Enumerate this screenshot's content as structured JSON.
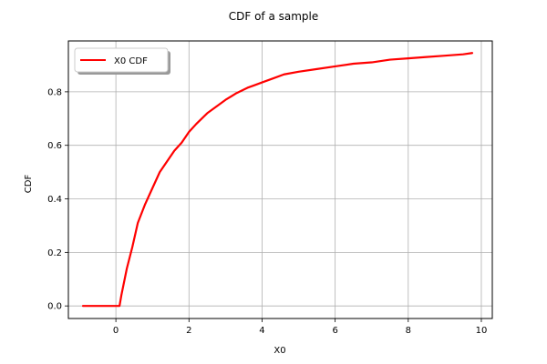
{
  "chart_data": {
    "type": "line",
    "title": "CDF of a sample",
    "xlabel": "X0",
    "ylabel": "CDF",
    "xlim": [
      -1.3,
      10.3
    ],
    "ylim": [
      -0.047,
      0.99
    ],
    "xticks": [
      0,
      2,
      4,
      6,
      8,
      10
    ],
    "yticks": [
      0.0,
      0.2,
      0.4,
      0.6,
      0.8
    ],
    "xtick_labels": [
      "0",
      "2",
      "4",
      "6",
      "8",
      "10"
    ],
    "ytick_labels": [
      "0.0",
      "0.2",
      "0.4",
      "0.6",
      "0.8"
    ],
    "grid": true,
    "legend_position": "top-left",
    "series": [
      {
        "name": "X0 CDF",
        "color": "#ff0000",
        "x": [
          -0.9,
          0.1,
          0.15,
          0.3,
          0.45,
          0.6,
          0.8,
          1.0,
          1.2,
          1.4,
          1.6,
          1.8,
          2.0,
          2.2,
          2.5,
          2.8,
          3.0,
          3.3,
          3.6,
          3.8,
          4.0,
          4.3,
          4.6,
          5.0,
          5.5,
          6.0,
          6.5,
          7.0,
          7.5,
          8.0,
          8.5,
          9.0,
          9.5,
          9.75
        ],
        "y": [
          0.0,
          0.0,
          0.04,
          0.14,
          0.22,
          0.31,
          0.38,
          0.44,
          0.5,
          0.54,
          0.58,
          0.61,
          0.65,
          0.68,
          0.72,
          0.75,
          0.77,
          0.795,
          0.815,
          0.825,
          0.835,
          0.85,
          0.865,
          0.875,
          0.885,
          0.895,
          0.905,
          0.91,
          0.92,
          0.925,
          0.93,
          0.935,
          0.94,
          0.945
        ]
      }
    ]
  }
}
